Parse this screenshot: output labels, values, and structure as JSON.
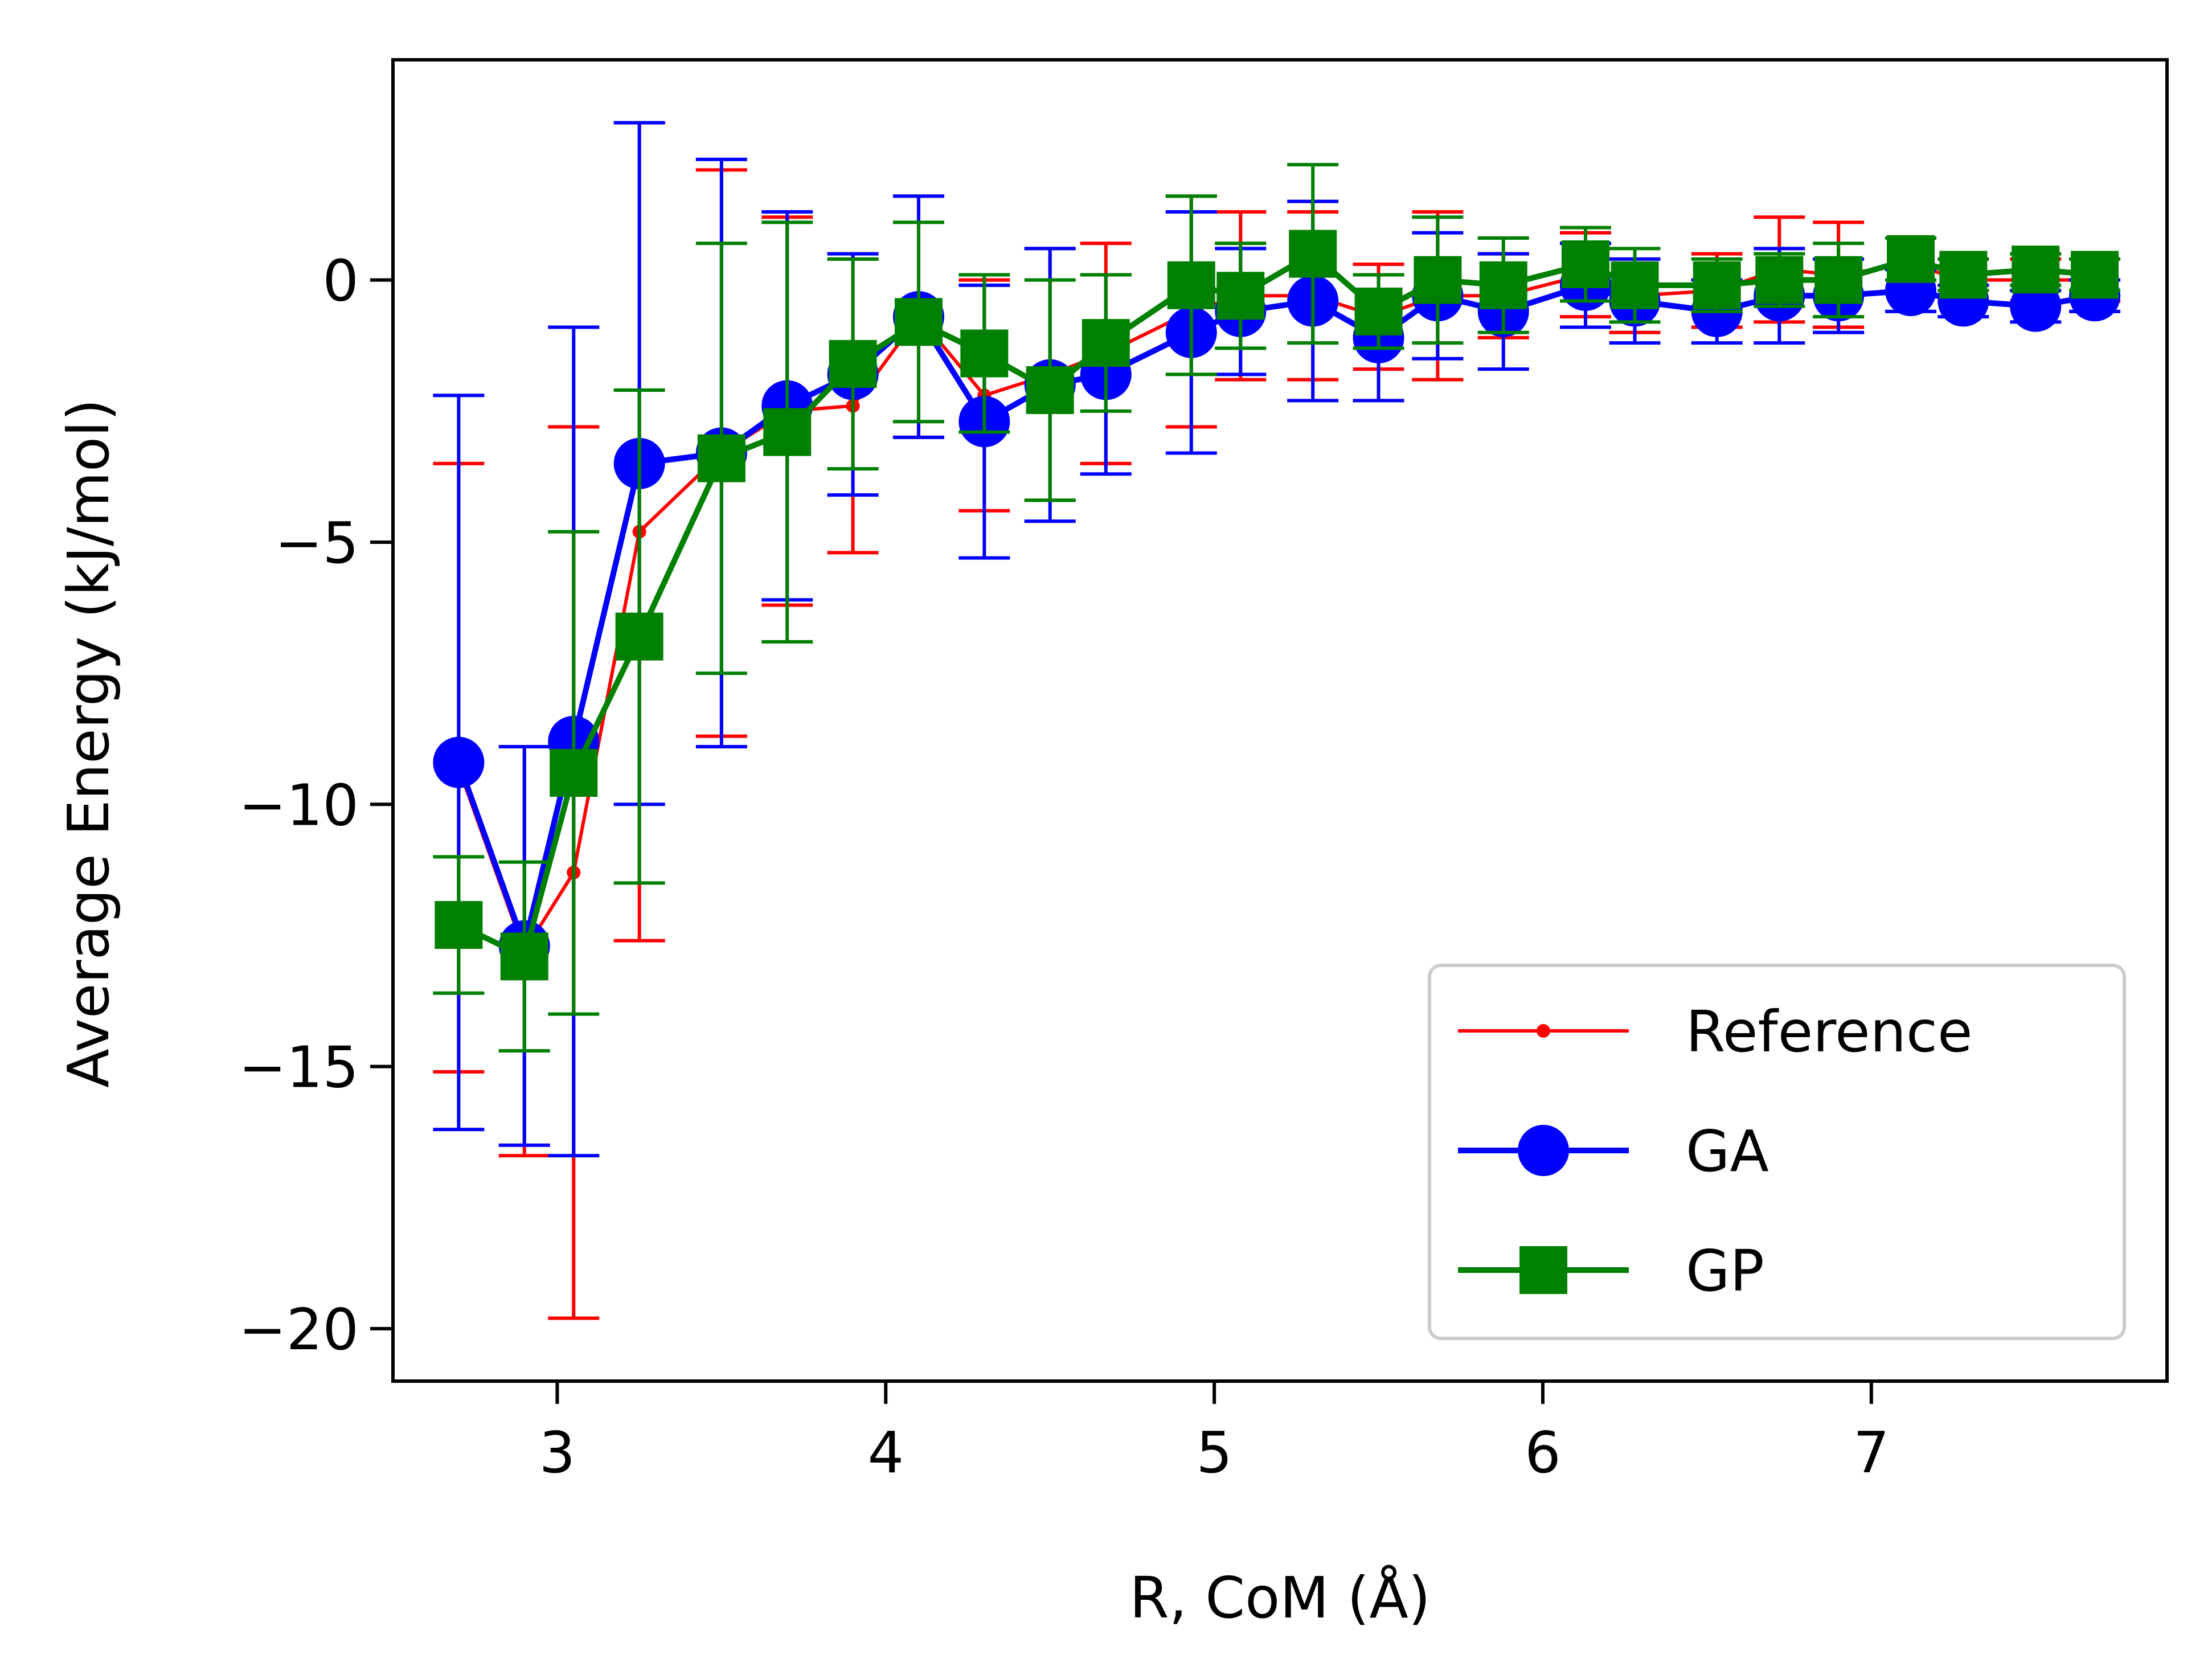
{
  "chart_data": {
    "type": "line",
    "title": "",
    "xlabel": "R, CoM (Å)",
    "ylabel": "Average Energy (kJ/mol)",
    "xlim": [
      2.5,
      7.9
    ],
    "ylim": [
      -21,
      4.2
    ],
    "xticks": [
      3,
      4,
      5,
      6,
      7
    ],
    "xtick_labels": [
      "3",
      "4",
      "5",
      "6",
      "7"
    ],
    "yticks": [
      -20,
      -15,
      -10,
      -5,
      0
    ],
    "ytick_labels": [
      "−20",
      "−15",
      "−10",
      "−5",
      "0"
    ],
    "grid": false,
    "legend_position": "lower-right",
    "series": [
      {
        "name": "Reference",
        "color": "#ff0000",
        "marker": "small-dot",
        "x": [
          2.7,
          2.9,
          3.05,
          3.25,
          3.5,
          3.7,
          3.9,
          4.1,
          4.3,
          4.5,
          4.67,
          4.93,
          5.08,
          5.3,
          5.5,
          5.68,
          5.88,
          6.13,
          6.28,
          6.53,
          6.72,
          6.9,
          7.12,
          7.28,
          7.5,
          7.68
        ],
        "y": [
          -9.3,
          -12.8,
          -11.3,
          -4.8,
          -3.3,
          -2.5,
          -2.4,
          -0.7,
          -2.2,
          -1.8,
          -1.4,
          -0.6,
          -0.3,
          -0.3,
          -0.7,
          -0.3,
          -0.3,
          0.1,
          -0.3,
          -0.2,
          0.2,
          0.1,
          0.3,
          0.0,
          0.0,
          0.0
        ],
        "err": [
          5.8,
          3.9,
          8.5,
          7.8,
          5.4,
          3.7,
          2.8,
          2.3,
          2.2,
          2.4,
          2.1,
          2.2,
          1.6,
          1.6,
          1.0,
          1.6,
          0.8,
          0.8,
          0.7,
          0.7,
          1.0,
          1.0,
          0.5,
          0.4,
          0.4,
          0.4
        ]
      },
      {
        "name": "GA",
        "color": "#0000ff",
        "marker": "circle",
        "x": [
          2.7,
          2.9,
          3.05,
          3.25,
          3.5,
          3.7,
          3.9,
          4.1,
          4.3,
          4.5,
          4.67,
          4.93,
          5.08,
          5.3,
          5.5,
          5.68,
          5.88,
          6.13,
          6.28,
          6.53,
          6.72,
          6.9,
          7.12,
          7.28,
          7.5,
          7.68
        ],
        "y": [
          -9.2,
          -12.7,
          -8.8,
          -3.5,
          -3.3,
          -2.4,
          -1.8,
          -0.7,
          -2.7,
          -2.0,
          -1.8,
          -1.0,
          -0.6,
          -0.4,
          -1.1,
          -0.3,
          -0.6,
          -0.1,
          -0.4,
          -0.6,
          -0.3,
          -0.3,
          -0.2,
          -0.4,
          -0.5,
          -0.3
        ],
        "err": [
          7.0,
          3.8,
          7.9,
          6.5,
          5.6,
          3.7,
          2.3,
          2.3,
          2.6,
          2.6,
          1.9,
          2.3,
          1.2,
          1.9,
          1.2,
          1.2,
          1.1,
          0.8,
          0.8,
          0.6,
          0.9,
          0.7,
          0.4,
          0.3,
          0.3,
          0.3
        ]
      },
      {
        "name": "GP",
        "color": "#008000",
        "marker": "square",
        "x": [
          2.7,
          2.9,
          3.05,
          3.25,
          3.5,
          3.7,
          3.9,
          4.1,
          4.3,
          4.5,
          4.67,
          4.93,
          5.08,
          5.3,
          5.5,
          5.68,
          5.88,
          6.13,
          6.28,
          6.53,
          6.72,
          6.9,
          7.12,
          7.28,
          7.5,
          7.68
        ],
        "y": [
          -12.3,
          -12.9,
          -9.4,
          -6.8,
          -3.4,
          -2.9,
          -1.6,
          -0.8,
          -1.4,
          -2.1,
          -1.2,
          -0.1,
          -0.3,
          0.5,
          -0.6,
          -0.0,
          -0.1,
          0.3,
          -0.1,
          -0.1,
          0.0,
          0.0,
          0.4,
          0.1,
          0.2,
          0.1
        ],
        "err": [
          1.3,
          1.8,
          4.6,
          4.7,
          4.1,
          4.0,
          2.0,
          1.9,
          1.5,
          2.1,
          1.3,
          1.7,
          1.0,
          1.7,
          0.7,
          1.2,
          0.9,
          0.7,
          0.7,
          0.5,
          0.5,
          0.7,
          0.4,
          0.3,
          0.3,
          0.3
        ]
      }
    ]
  }
}
